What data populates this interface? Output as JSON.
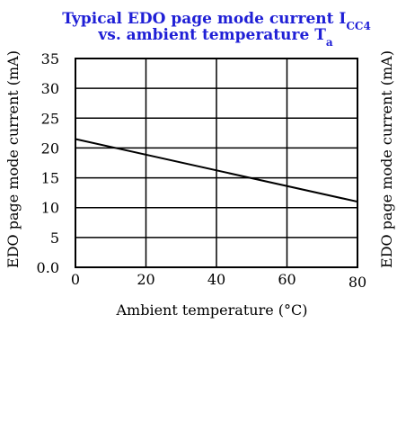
{
  "colors": {
    "title": "#1f1fd6",
    "axis": "#000000",
    "background": "#ffffff"
  },
  "chart_data": {
    "type": "line",
    "title": {
      "line1": "Typical EDO page mode current I",
      "line1_sub": "CC4",
      "line2": "vs. ambient temperature T",
      "line2_sub": "a"
    },
    "xlabel": "Ambient temperature (°C)",
    "ylabel": "EDO page mode current (mA)",
    "xlim": [
      0,
      80
    ],
    "ylim": [
      0,
      35
    ],
    "x_ticks": [
      {
        "value": 0,
        "label": "0"
      },
      {
        "value": 20,
        "label": "20"
      },
      {
        "value": 40,
        "label": "40"
      },
      {
        "value": 60,
        "label": "60"
      },
      {
        "value": 80,
        "label": "80"
      }
    ],
    "y_ticks": [
      {
        "value": 0,
        "label": "0.0"
      },
      {
        "value": 5,
        "label": "5"
      },
      {
        "value": 10,
        "label": "10"
      },
      {
        "value": 15,
        "label": "15"
      },
      {
        "value": 20,
        "label": "20"
      },
      {
        "value": 25,
        "label": "25"
      },
      {
        "value": 30,
        "label": "30"
      },
      {
        "value": 35,
        "label": "35"
      }
    ],
    "grid": true,
    "series": [
      {
        "x": [
          0,
          80
        ],
        "y": [
          21.5,
          11.0
        ]
      }
    ],
    "clipped_right_panel": {
      "ylabel_fragment": "EDO page mode current (mA)"
    }
  }
}
